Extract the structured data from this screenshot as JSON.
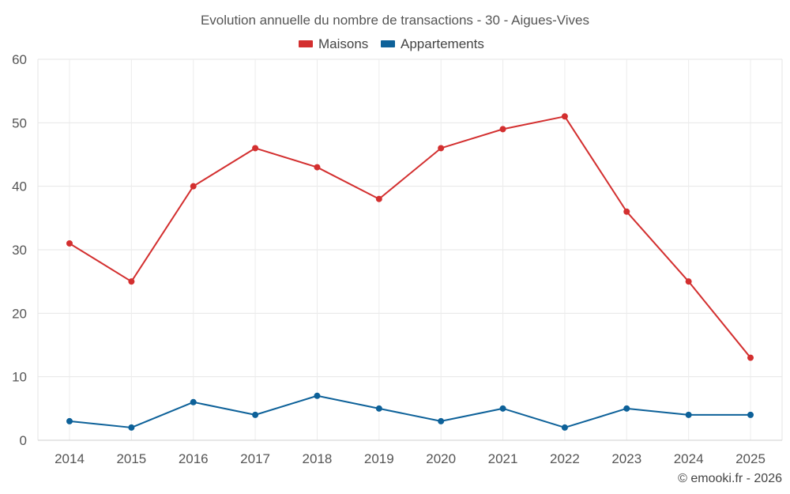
{
  "chart_data": {
    "type": "line",
    "title": "Evolution annuelle du nombre de transactions - 30 - Aigues-Vives",
    "xlabel": "",
    "ylabel": "",
    "x": [
      "2014",
      "2015",
      "2016",
      "2017",
      "2018",
      "2019",
      "2020",
      "2021",
      "2022",
      "2023",
      "2024",
      "2025"
    ],
    "ylim": [
      0,
      60
    ],
    "yticks": [
      0,
      10,
      20,
      30,
      40,
      50,
      60
    ],
    "grid": true,
    "legend_position": "top-center",
    "series": [
      {
        "name": "Maisons",
        "color": "#d32f2f",
        "values": [
          31,
          25,
          40,
          46,
          43,
          38,
          46,
          49,
          51,
          36,
          25,
          13
        ]
      },
      {
        "name": "Appartements",
        "color": "#0d6199",
        "values": [
          3,
          2,
          6,
          4,
          7,
          5,
          3,
          5,
          2,
          5,
          4,
          4
        ]
      }
    ]
  },
  "credit": "© emooki.fr - 2026"
}
